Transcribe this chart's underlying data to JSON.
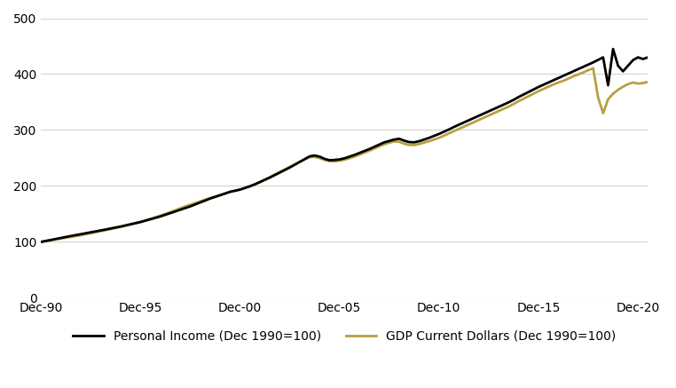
{
  "title": "",
  "background_color": "#ffffff",
  "grid_color": "#d3d3d3",
  "ylim": [
    0,
    500
  ],
  "yticks": [
    0,
    100,
    200,
    300,
    400,
    500
  ],
  "pi_color": "#000000",
  "gdp_color": "#b8a040",
  "pi_linewidth": 2.0,
  "gdp_linewidth": 2.0,
  "legend_pi": "Personal Income (Dec 1990=100)",
  "legend_gdp": "GDP Current Dollars (Dec 1990=100)",
  "xtick_labels": [
    "Dec-90",
    "Dec-95",
    "Dec-00",
    "Dec-05",
    "Dec-10",
    "Dec-15",
    "Dec-20"
  ],
  "xtick_positions": [
    0,
    20,
    40,
    60,
    80,
    100,
    120
  ],
  "personal_income": [
    100.0,
    101.8,
    103.5,
    105.3,
    107.0,
    108.8,
    110.5,
    112.2,
    113.8,
    115.5,
    117.2,
    118.8,
    120.5,
    122.2,
    124.0,
    125.8,
    127.5,
    129.5,
    131.5,
    133.5,
    135.5,
    138.0,
    140.5,
    143.0,
    145.5,
    148.5,
    151.5,
    154.5,
    157.5,
    160.5,
    163.5,
    167.0,
    170.5,
    174.0,
    177.5,
    180.5,
    183.5,
    186.5,
    189.5,
    191.5,
    193.5,
    196.5,
    199.5,
    203.0,
    207.0,
    211.0,
    215.0,
    219.5,
    224.0,
    228.5,
    233.0,
    238.0,
    243.0,
    248.0,
    253.0,
    254.5,
    252.5,
    248.5,
    246.0,
    246.5,
    247.5,
    249.5,
    252.5,
    255.5,
    259.0,
    262.5,
    266.0,
    270.0,
    274.0,
    278.0,
    280.5,
    283.0,
    284.5,
    281.0,
    278.5,
    278.0,
    280.0,
    283.0,
    286.0,
    289.5,
    293.0,
    297.0,
    301.0,
    305.5,
    309.5,
    313.5,
    317.5,
    321.5,
    325.5,
    329.5,
    333.5,
    337.5,
    341.5,
    345.5,
    349.5,
    354.0,
    359.0,
    363.5,
    368.0,
    372.5,
    377.0,
    381.0,
    385.0,
    389.0,
    393.0,
    397.0,
    401.0,
    405.0,
    409.0,
    413.0,
    417.0,
    421.0,
    425.5,
    430.0,
    380.0,
    445.0,
    415.0,
    405.0,
    415.0,
    425.0,
    430.0,
    427.0,
    430.0
  ],
  "gdp": [
    100.0,
    101.5,
    103.0,
    104.5,
    106.0,
    107.5,
    109.0,
    110.5,
    112.0,
    113.8,
    115.5,
    117.3,
    119.2,
    121.0,
    122.8,
    124.8,
    126.8,
    129.0,
    131.2,
    133.5,
    135.8,
    138.5,
    141.2,
    144.0,
    147.0,
    150.0,
    153.2,
    156.5,
    160.0,
    163.5,
    166.5,
    169.5,
    172.5,
    175.5,
    178.5,
    181.0,
    183.5,
    186.5,
    189.5,
    191.5,
    193.5,
    196.5,
    199.5,
    203.0,
    207.0,
    211.5,
    216.0,
    220.5,
    225.0,
    229.5,
    234.0,
    238.5,
    243.0,
    247.5,
    251.5,
    252.0,
    250.0,
    246.5,
    244.5,
    244.0,
    245.0,
    247.0,
    249.5,
    252.5,
    256.0,
    259.5,
    263.0,
    267.0,
    271.0,
    274.5,
    277.5,
    279.5,
    279.0,
    275.5,
    273.5,
    273.0,
    275.0,
    277.5,
    280.0,
    283.0,
    286.0,
    290.0,
    294.0,
    298.0,
    302.0,
    306.0,
    310.0,
    314.0,
    318.0,
    322.0,
    326.0,
    330.0,
    334.0,
    338.0,
    342.0,
    346.5,
    351.5,
    356.0,
    360.5,
    365.0,
    369.5,
    373.5,
    377.5,
    381.5,
    385.0,
    388.0,
    392.0,
    396.0,
    399.5,
    403.0,
    407.0,
    410.5,
    358.0,
    330.0,
    355.0,
    365.0,
    372.0,
    377.5,
    382.0,
    385.0,
    383.0,
    384.0,
    386.0
  ]
}
